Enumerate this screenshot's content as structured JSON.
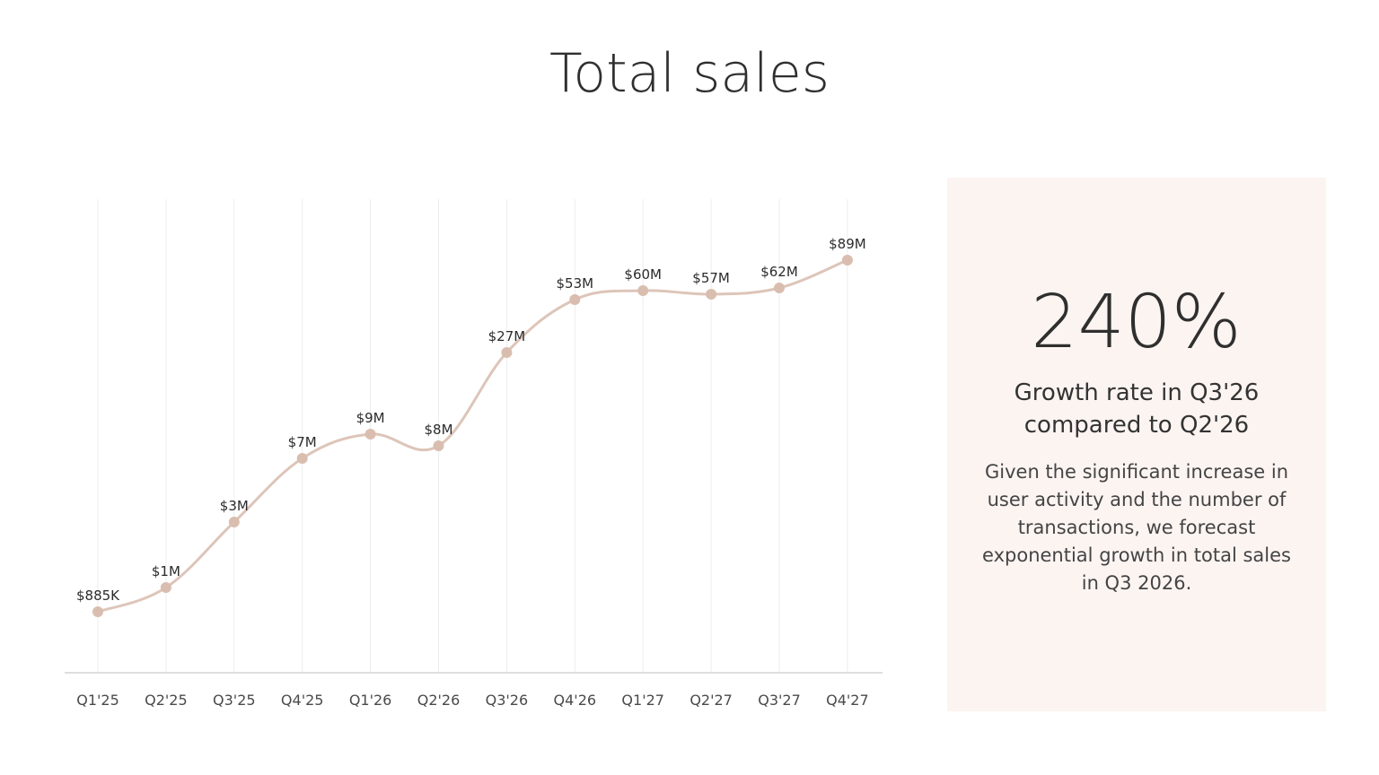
{
  "title": "Total sales",
  "chart_data": {
    "type": "line",
    "categories": [
      "Q1'25",
      "Q2'25",
      "Q3'25",
      "Q4'25",
      "Q1'26",
      "Q2'26",
      "Q3'26",
      "Q4'26",
      "Q1'27",
      "Q2'27",
      "Q3'27",
      "Q4'27"
    ],
    "values": [
      0.885,
      1,
      3,
      7,
      9,
      8,
      27,
      53,
      60,
      57,
      62,
      89
    ],
    "data_labels": [
      "$885K",
      "$1M",
      "$3M",
      "$7M",
      "$9M",
      "$8M",
      "$27M",
      "$53M",
      "$60M",
      "$57M",
      "$62M",
      "$89M"
    ],
    "unit": "$M",
    "grid": "vertical",
    "line_color": "#ddc5b9",
    "point_color": "#d9beaf"
  },
  "panel": {
    "stat": "240%",
    "caption": "Growth rate in Q3'26 compared to Q2'26",
    "body": "Given the significant increase in user activity and the number of transactions, we forecast exponential growth in total sales in Q3 2026.",
    "background": "#fcf4f1"
  }
}
